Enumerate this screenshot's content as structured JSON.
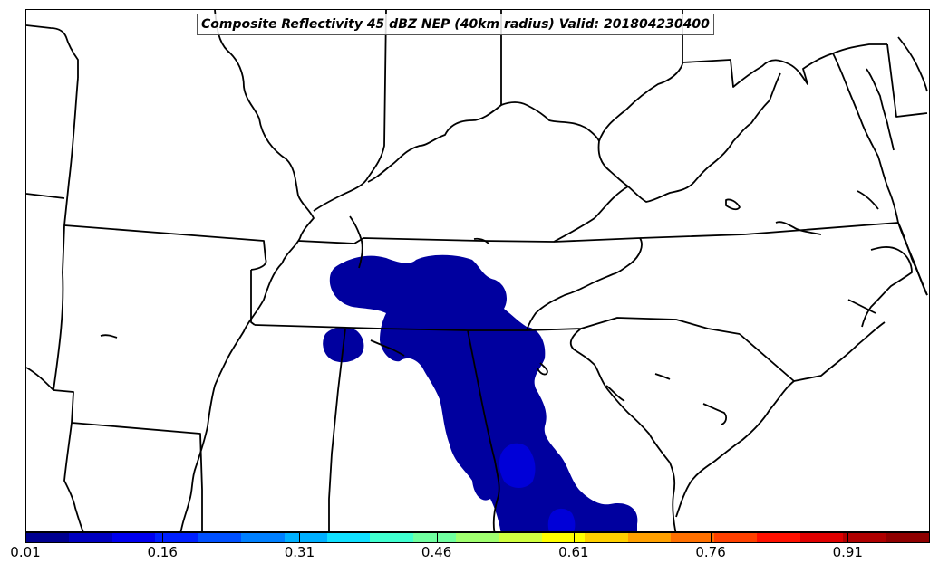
{
  "title": "Composite Reflectivity 45 dBZ NEP (40km radius) Valid: 201804230400",
  "colorbar": {
    "ticks": [
      "0.01",
      "0.16",
      "0.31",
      "0.46",
      "0.61",
      "0.76",
      "0.91"
    ],
    "tick_values": [
      0.01,
      0.16,
      0.31,
      0.46,
      0.61,
      0.76,
      0.91
    ],
    "range": [
      0.01,
      1.0
    ],
    "colors": [
      "#00008f",
      "#0000bf",
      "#0000ef",
      "#0020ff",
      "#0050ff",
      "#0080ff",
      "#00b0ff",
      "#10e0ff",
      "#40ffd0",
      "#70ffa0",
      "#a0ff70",
      "#d0ff40",
      "#ffff00",
      "#ffd000",
      "#ffa000",
      "#ff7000",
      "#ff4000",
      "#ff1000",
      "#df0000",
      "#af0000",
      "#8f0000"
    ]
  },
  "field_colors": {
    "low": "#00009f",
    "mid": "#0000d8"
  }
}
